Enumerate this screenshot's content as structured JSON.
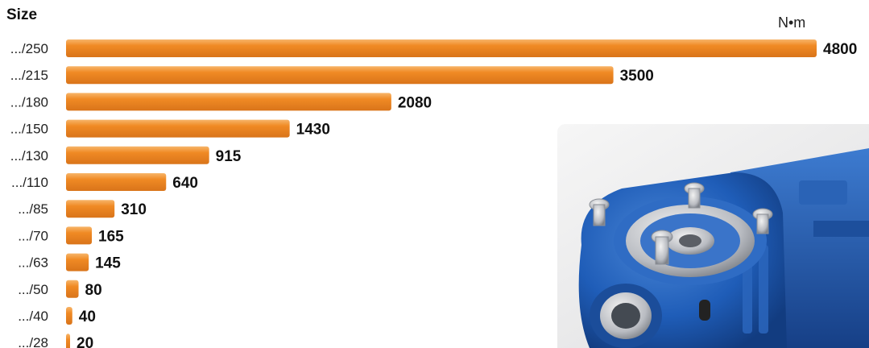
{
  "header": {
    "title": "Size",
    "unit": "N•m"
  },
  "colors": {
    "bar": "#f08a24",
    "bar_light": "#f7b56a",
    "bar_dark": "#d9741a"
  },
  "product_image": {
    "subject": "blue worm gearbox"
  },
  "chart_data": {
    "type": "bar",
    "orientation": "horizontal",
    "title": "",
    "ylabel": "Size",
    "xlabel": "N•m",
    "categories": [
      ".../250",
      ".../215",
      ".../180",
      ".../150",
      ".../130",
      ".../110",
      ".../85",
      ".../70",
      ".../63",
      ".../50",
      ".../40",
      ".../28"
    ],
    "values": [
      4800,
      3500,
      2080,
      1430,
      915,
      640,
      310,
      165,
      145,
      80,
      40,
      20
    ],
    "value_labels": [
      "4800",
      "3500",
      "2080",
      "1430",
      "915",
      "640",
      "310",
      "165",
      "145",
      "80",
      "40",
      "20"
    ],
    "xlim": [
      0,
      4800
    ],
    "grid": false,
    "legend": "none"
  }
}
